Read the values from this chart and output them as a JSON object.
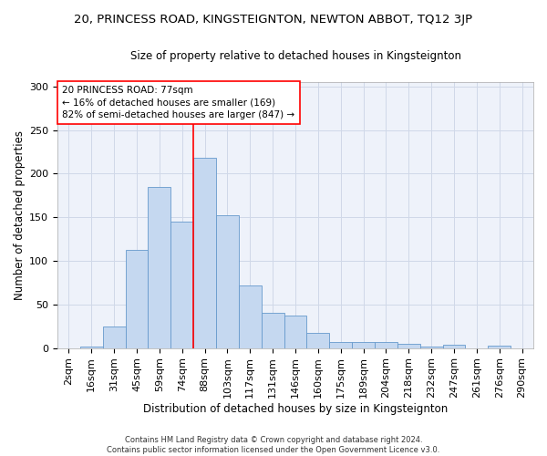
{
  "title1": "20, PRINCESS ROAD, KINGSTEIGNTON, NEWTON ABBOT, TQ12 3JP",
  "title2": "Size of property relative to detached houses in Kingsteignton",
  "xlabel": "Distribution of detached houses by size in Kingsteignton",
  "ylabel": "Number of detached properties",
  "footnote": "Contains HM Land Registry data © Crown copyright and database right 2024.\nContains public sector information licensed under the Open Government Licence v3.0.",
  "annotation_title": "20 PRINCESS ROAD: 77sqm",
  "annotation_line1": "← 16% of detached houses are smaller (169)",
  "annotation_line2": "82% of semi-detached houses are larger (847) →",
  "bar_labels": [
    "2sqm",
    "16sqm",
    "31sqm",
    "45sqm",
    "59sqm",
    "74sqm",
    "88sqm",
    "103sqm",
    "117sqm",
    "131sqm",
    "146sqm",
    "160sqm",
    "175sqm",
    "189sqm",
    "204sqm",
    "218sqm",
    "232sqm",
    "247sqm",
    "261sqm",
    "276sqm",
    "290sqm"
  ],
  "bar_values": [
    0,
    2,
    25,
    113,
    185,
    145,
    218,
    152,
    72,
    40,
    37,
    17,
    7,
    7,
    7,
    5,
    2,
    4,
    0,
    3,
    0
  ],
  "bar_color": "#c5d8f0",
  "bar_edge_color": "#6699cc",
  "vline_color": "red",
  "vline_x_idx": 5.5,
  "grid_color": "#d0d8e8",
  "bg_color": "#eef2fa",
  "annotation_box_color": "red",
  "ylim": [
    0,
    305
  ],
  "yticks": [
    0,
    50,
    100,
    150,
    200,
    250,
    300
  ],
  "title1_fontsize": 9.5,
  "title2_fontsize": 8.5,
  "xlabel_fontsize": 8.5,
  "ylabel_fontsize": 8.5,
  "tick_fontsize": 8,
  "annotation_fontsize": 7.5,
  "footnote_fontsize": 6
}
